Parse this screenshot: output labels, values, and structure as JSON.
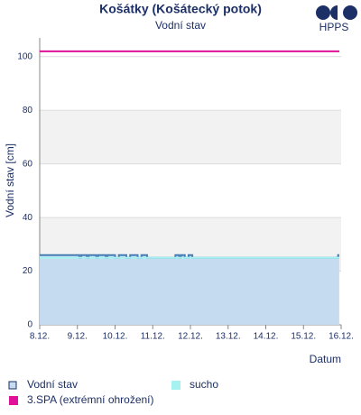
{
  "chart_data": {
    "type": "line",
    "title": "Košátky (Košátecký potok)",
    "subtitle": "Vodní stav",
    "logo": "HPPS",
    "y_label": "Vodní stav [cm]",
    "x_label": "Datum",
    "xlim": [
      0,
      8
    ],
    "xticks": [
      {
        "value": 0,
        "label": "8.12."
      },
      {
        "value": 1,
        "label": "9.12."
      },
      {
        "value": 2,
        "label": "10.12."
      },
      {
        "value": 3,
        "label": "11.12."
      },
      {
        "value": 4,
        "label": "12.12."
      },
      {
        "value": 5,
        "label": "13.12."
      },
      {
        "value": 6,
        "label": "14.12."
      },
      {
        "value": 7,
        "label": "15.12."
      },
      {
        "value": 8,
        "label": "16.12."
      }
    ],
    "ylim": [
      0,
      107
    ],
    "yticks": [
      0,
      20,
      40,
      60,
      80,
      100
    ],
    "grid": true,
    "bands": true,
    "series": [
      {
        "name": "Vodní stav",
        "color": "#4a7fb5",
        "fill": "#c5dcf0",
        "x": [
          0,
          1.05,
          1.1,
          1.25,
          1.3,
          1.5,
          1.55,
          1.75,
          1.8,
          2.0,
          2.1,
          2.3,
          2.4,
          2.6,
          2.7,
          2.85,
          2.95,
          3.6,
          3.7,
          3.75,
          3.85,
          3.95,
          4.05,
          4.15,
          7.92,
          7.95
        ],
        "values": [
          26,
          25,
          26,
          25,
          26,
          25,
          26,
          25,
          26,
          25,
          26,
          25,
          26,
          25,
          26,
          25,
          25,
          26,
          25,
          26,
          25,
          26,
          25,
          25,
          26,
          26
        ]
      },
      {
        "name": "sucho",
        "color": "#a6f2f2",
        "threshold": 25
      },
      {
        "name": "3.SPA (extrémní ohrožení)",
        "color": "#e0109a",
        "threshold": 102
      }
    ]
  }
}
